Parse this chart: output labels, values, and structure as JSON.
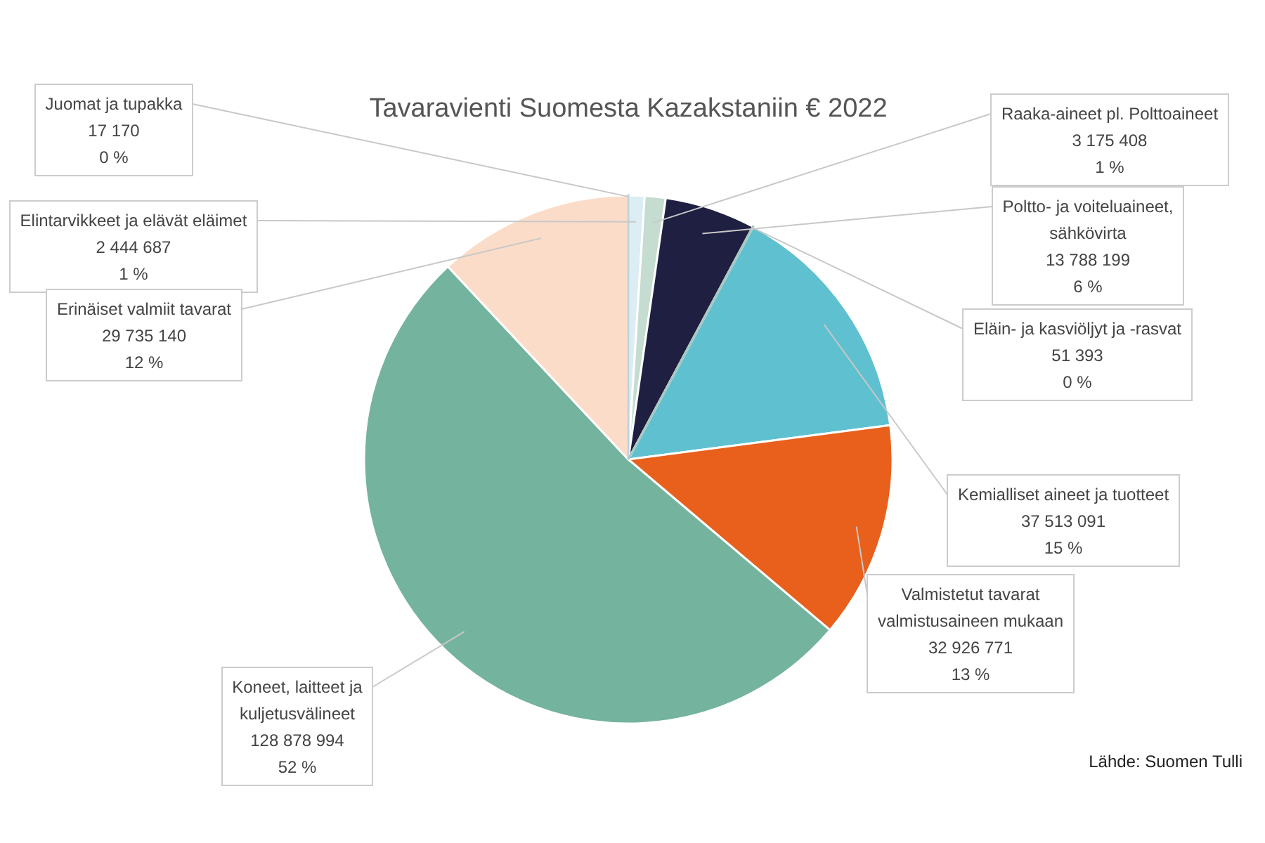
{
  "chart_data": {
    "type": "pie",
    "title": "Tavaravienti Suomesta Kazakstaniin € 2022",
    "categories": [
      "Juomat ja tupakka",
      "Elintarvikkeet ja elävät eläimet",
      "Raaka-aineet pl. Polttoaineet",
      "Poltto- ja voiteluaineet, sähkövirta",
      "Eläin- ja kasviöljyt ja -rasvat",
      "Kemialliset aineet ja tuotteet",
      "Valmistetut tavarat valmistusaineen mukaan",
      "Koneet, laitteet ja kuljetusvälineet",
      "Erinäiset valmiit tavarat"
    ],
    "values": [
      17170,
      2444687,
      3175408,
      13788199,
      51393,
      37513091,
      32926771,
      128878994,
      29735140
    ],
    "colors": [
      "#b9d3dc",
      "#dcedf4",
      "#c5dcd0",
      "#1f1f42",
      "#a9c7c0",
      "#5fc0d0",
      "#e8601c",
      "#74b39d",
      "#fbdcc8"
    ],
    "value_labels": [
      "17 170\n0 %",
      "2 444 687\n1 %",
      "3 175 408\n1 %",
      "13 788 199\n6 %",
      "51 393\n0 %",
      "37 513 091\n15 %",
      "32 926 771\n13 %",
      "128 878 994\n52 %",
      "29 735 140\n12 %"
    ],
    "annotations": [
      "Lähde: Suomen Tulli"
    ]
  }
}
